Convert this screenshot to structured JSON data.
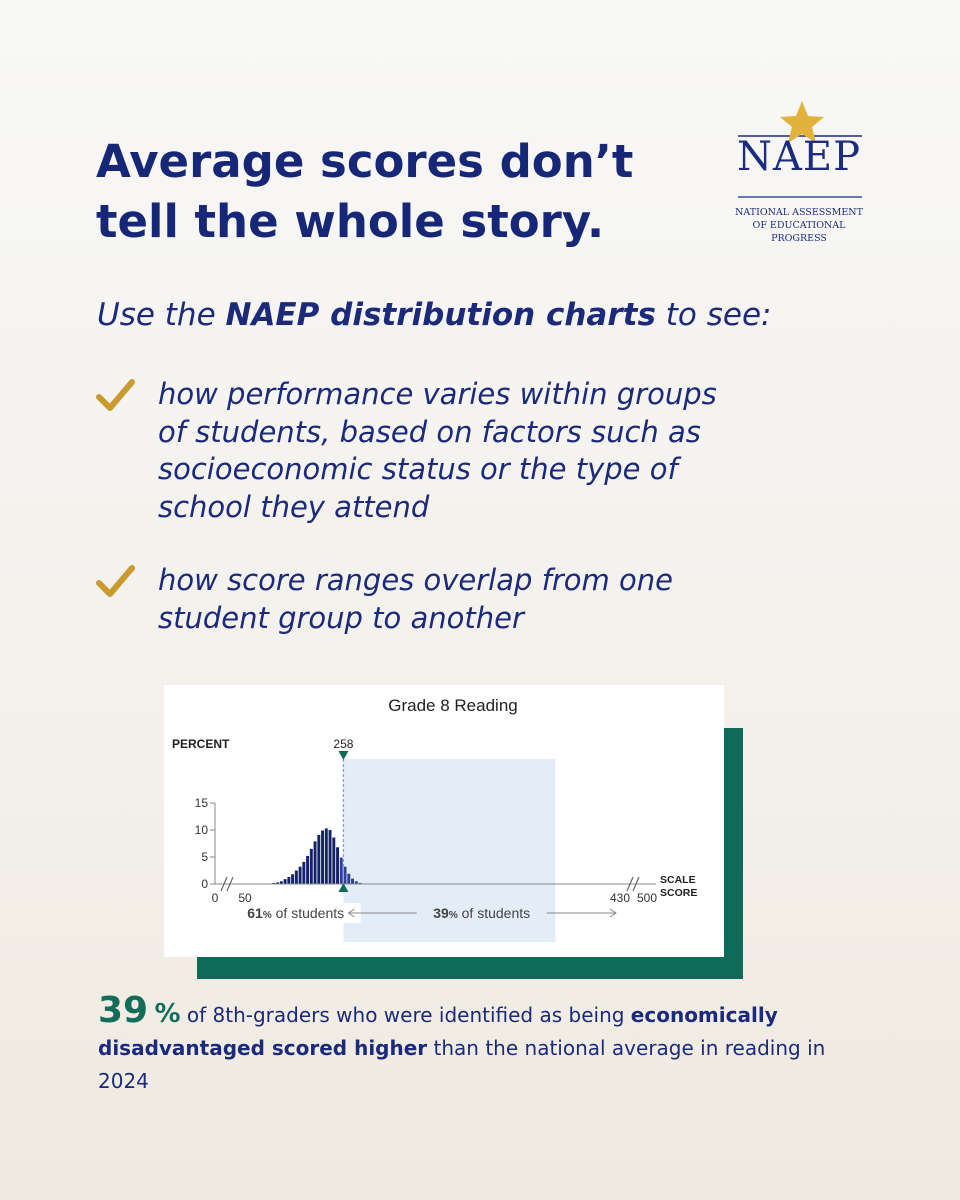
{
  "headline": {
    "line1": "Average scores don’t",
    "line2": "tell the whole story."
  },
  "logo": {
    "word": "NAEP",
    "sub": [
      "NATIONAL ASSESSMENT",
      "OF EDUCATIONAL",
      "PROGRESS"
    ],
    "star_color": "#e3b23c",
    "navy": "#1c2c80"
  },
  "intro": {
    "before": "Use the ",
    "bold": "NAEP distribution charts",
    "after": " to see:"
  },
  "bullets": [
    {
      "lines": [
        "how performance varies within groups",
        "of students, based on factors such as",
        "socioeconomic status or the type of",
        "school they attend"
      ]
    },
    {
      "lines": [
        "how score ranges overlap from one",
        "student group to another"
      ]
    }
  ],
  "colors": {
    "navy": "#162777",
    "teal": "#0e6b5a",
    "gold": "#c99a2e",
    "highlight": "#e3edf8"
  },
  "chart_data": {
    "type": "bar",
    "title": "Grade 8 Reading",
    "ylabel": "PERCENT",
    "xlabel": "SCALE SCORE",
    "xlabel_lines": [
      "SCALE",
      "SCORE"
    ],
    "ylim": [
      0,
      15
    ],
    "yticks": [
      0,
      5,
      10,
      15
    ],
    "x_tick_labels": [
      "0",
      "50",
      "430",
      "500"
    ],
    "marker": {
      "value": 258,
      "label": "258"
    },
    "x": [
      110,
      118,
      126,
      134,
      142,
      150,
      158,
      166,
      174,
      182,
      190,
      198,
      206,
      214,
      222,
      230,
      238,
      246,
      254,
      262,
      270,
      278,
      286,
      294,
      302,
      310,
      318,
      326,
      334,
      342
    ],
    "values": [
      0.1,
      0.2,
      0.3,
      0.5,
      0.9,
      1.3,
      1.8,
      2.5,
      3.2,
      4.1,
      5.2,
      6.5,
      7.9,
      9.1,
      9.9,
      10.3,
      10.0,
      8.6,
      6.8,
      4.9,
      3.2,
      1.9,
      1.0,
      0.5,
      0.2,
      0.1,
      0.05,
      0.05,
      0.05,
      0.05
    ],
    "values_note": "",
    "ranges": [
      {
        "pct": "61",
        "pct_suffix": "%",
        "text": " of students"
      },
      {
        "pct": "39",
        "pct_suffix": "%",
        "text": " of students"
      }
    ]
  },
  "footnote": {
    "big": "39",
    "pct": "%",
    "t1": " of 8th-graders who were identified as being ",
    "b1": "economically disadvantaged scored higher",
    "t2": " than the national average in reading in 2024"
  }
}
